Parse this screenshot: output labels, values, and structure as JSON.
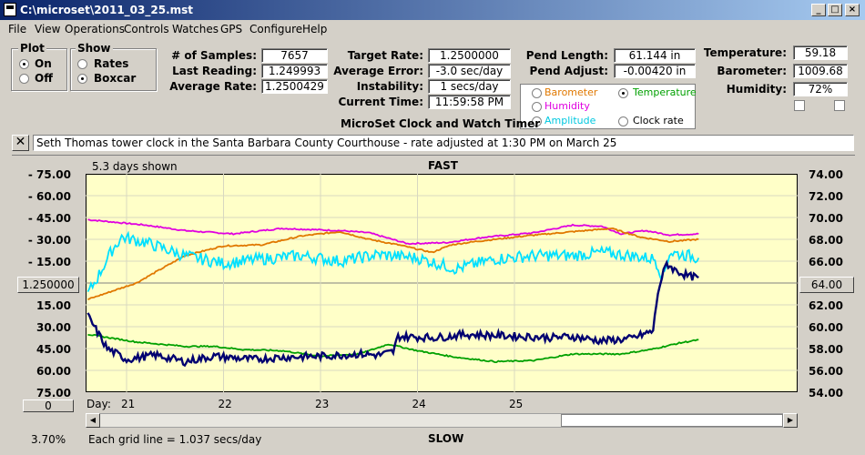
{
  "window": {
    "title": "C:\\microset\\2011_03_25.mst"
  },
  "menu": [
    "File",
    "View",
    "Operations",
    "Controls",
    "Watches",
    "GPS",
    "Configure",
    "Help"
  ],
  "plot_group": {
    "title": "Plot",
    "on": "On",
    "off": "Off",
    "selected": "On"
  },
  "show_group": {
    "title": "Show",
    "rates": "Rates",
    "boxcar": "Boxcar",
    "selected": "Boxcar"
  },
  "stats": {
    "samples_label": "# of Samples:",
    "samples": "7657",
    "last_label": "Last Reading:",
    "last": "1.249993",
    "avg_label": "Average Rate:",
    "avg": "1.2500429"
  },
  "rates": {
    "target_label": "Target Rate:",
    "target": "1.2500000",
    "error_label": "Average Error:",
    "error": "-3.0 sec/day",
    "instab_label": "Instability:",
    "instab": "1 secs/day",
    "time_label": "Current Time:",
    "time": "11:59:58 PM"
  },
  "pendulum": {
    "length_label": "Pend Length:",
    "length": "61.144 in",
    "adjust_label": "Pend Adjust:",
    "adjust": "-0.00420 in"
  },
  "environment": {
    "temp_label": "Temperature:",
    "temp": "59.18",
    "baro_label": "Barometer:",
    "baro": "1009.68",
    "hum_label": "Humidity:",
    "hum": "72%"
  },
  "series_select": {
    "barometer": "Barometer",
    "temperature": "Temperature",
    "humidity": "Humidity",
    "amplitude": "Amplitude",
    "clock_rate": "Clock rate",
    "selected": "Temperature",
    "colors": {
      "barometer": "#e07800",
      "temperature": "#00a000",
      "humidity": "#e000e0",
      "amplitude": "#00c8e0",
      "clock_rate": "#000000"
    }
  },
  "app_caption": "MicroSet Clock and Watch Timer",
  "note": "Seth Thomas tower clock in the Santa Barbara County Courthouse - rate adjusted at 1:30 PM on March 25",
  "chart_header": {
    "days_shown": "5.3 days shown",
    "fast": "FAST",
    "slow": "SLOW"
  },
  "center_value_left": "1.250000",
  "center_value_right": "64.00",
  "left_scale_button": "0",
  "footer": {
    "percent": "3.70%",
    "grid": "Each grid line = 1.037 secs/day"
  },
  "chart_data": {
    "type": "line",
    "x_label": "Day:",
    "x_ticks": [
      "21",
      "22",
      "23",
      "24",
      "25"
    ],
    "left_ticks": [
      "-  75.00",
      "-  60.00",
      "-  45.00",
      "-  30.00",
      "-  15.00",
      "15.00",
      "30.00",
      "45.00",
      "60.00",
      "75.00"
    ],
    "right_ticks": [
      "74.00",
      "72.00",
      "70.00",
      "68.00",
      "66.00",
      "62.00",
      "60.00",
      "58.00",
      "56.00",
      "54.00"
    ],
    "right_ylim": [
      54,
      74
    ],
    "series": [
      {
        "key": "humidity",
        "color": "#e000e0",
        "points": [
          [
            0,
            69.8
          ],
          [
            0.6,
            69.3
          ],
          [
            1.0,
            68.8
          ],
          [
            1.5,
            68.5
          ],
          [
            2.0,
            69.0
          ],
          [
            2.6,
            68.8
          ],
          [
            2.9,
            68.6
          ],
          [
            3.3,
            67.6
          ],
          [
            3.7,
            67.7
          ],
          [
            4.1,
            68.2
          ],
          [
            4.6,
            68.6
          ],
          [
            5.0,
            69.3
          ],
          [
            5.3,
            69.2
          ],
          [
            5.5,
            68.5
          ],
          [
            5.75,
            68.8
          ],
          [
            6.0,
            68.4
          ],
          [
            6.3,
            68.5
          ]
        ]
      },
      {
        "key": "barometer",
        "color": "#e07800",
        "points": [
          [
            0,
            62.5
          ],
          [
            0.5,
            64.0
          ],
          [
            1.0,
            66.5
          ],
          [
            1.4,
            67.4
          ],
          [
            1.8,
            67.5
          ],
          [
            2.2,
            68.3
          ],
          [
            2.6,
            68.7
          ],
          [
            2.9,
            68.0
          ],
          [
            3.2,
            67.5
          ],
          [
            3.55,
            66.8
          ],
          [
            3.75,
            67.5
          ],
          [
            4.0,
            67.8
          ],
          [
            4.5,
            68.3
          ],
          [
            5.0,
            68.7
          ],
          [
            5.4,
            69.0
          ],
          [
            5.7,
            68.2
          ],
          [
            6.0,
            67.8
          ],
          [
            6.3,
            68.0
          ]
        ]
      },
      {
        "key": "amplitude",
        "color": "#00e0ff",
        "points": [
          [
            0,
            63.0
          ],
          [
            0.1,
            64.5
          ],
          [
            0.25,
            67.0
          ],
          [
            0.35,
            68.2
          ],
          [
            0.6,
            67.7
          ],
          [
            1.0,
            66.5
          ],
          [
            1.4,
            65.8
          ],
          [
            1.8,
            66.2
          ],
          [
            2.2,
            66.5
          ],
          [
            2.6,
            66.0
          ],
          [
            3.0,
            66.6
          ],
          [
            3.4,
            66.3
          ],
          [
            3.8,
            65.3
          ],
          [
            4.2,
            66.2
          ],
          [
            4.6,
            66.5
          ],
          [
            5.0,
            66.5
          ],
          [
            5.3,
            66.8
          ],
          [
            5.6,
            66.5
          ],
          [
            5.85,
            66.2
          ],
          [
            5.93,
            64.5
          ],
          [
            6.0,
            66.8
          ],
          [
            6.2,
            66.5
          ],
          [
            6.3,
            66.3
          ]
        ]
      },
      {
        "key": "temperature",
        "color": "#00a000",
        "points": [
          [
            0,
            59.3
          ],
          [
            0.5,
            58.6
          ],
          [
            1.0,
            58.2
          ],
          [
            1.3,
            58.2
          ],
          [
            1.6,
            57.9
          ],
          [
            2.0,
            57.8
          ],
          [
            2.4,
            57.3
          ],
          [
            2.8,
            57.5
          ],
          [
            3.1,
            58.4
          ],
          [
            3.4,
            57.8
          ],
          [
            3.8,
            57.2
          ],
          [
            4.2,
            56.8
          ],
          [
            4.6,
            56.9
          ],
          [
            5.0,
            57.5
          ],
          [
            5.5,
            57.5
          ],
          [
            5.8,
            57.9
          ],
          [
            6.1,
            58.5
          ],
          [
            6.3,
            58.8
          ]
        ]
      },
      {
        "key": "clock_rate",
        "color": "#000070",
        "points": [
          [
            0,
            61.0
          ],
          [
            0.2,
            58.0
          ],
          [
            0.4,
            57.0
          ],
          [
            0.7,
            57.4
          ],
          [
            1.0,
            56.8
          ],
          [
            1.3,
            57.3
          ],
          [
            1.7,
            57.0
          ],
          [
            2.0,
            57.2
          ],
          [
            2.4,
            57.3
          ],
          [
            2.8,
            57.5
          ],
          [
            3.0,
            57.4
          ],
          [
            3.15,
            57.7
          ],
          [
            3.2,
            59.1
          ],
          [
            3.6,
            59.0
          ],
          [
            3.9,
            59.3
          ],
          [
            4.2,
            59.2
          ],
          [
            4.5,
            59.1
          ],
          [
            4.8,
            59.0
          ],
          [
            5.0,
            59.1
          ],
          [
            5.3,
            58.7
          ],
          [
            5.6,
            58.9
          ],
          [
            5.83,
            59.6
          ],
          [
            5.88,
            63.2
          ],
          [
            5.92,
            64.5
          ],
          [
            5.97,
            65.8
          ],
          [
            6.05,
            65.2
          ],
          [
            6.2,
            64.6
          ],
          [
            6.3,
            64.5
          ]
        ]
      }
    ]
  }
}
